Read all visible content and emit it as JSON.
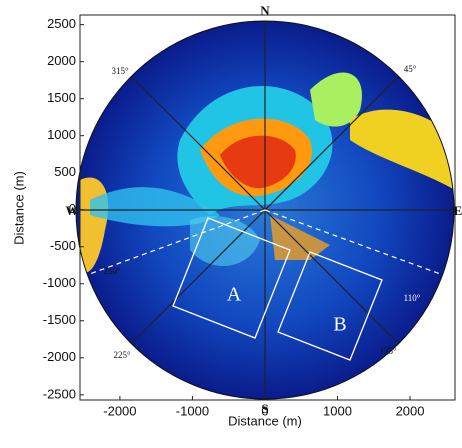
{
  "chart_data": {
    "type": "radar-image",
    "xlabel": "Distance (m)",
    "ylabel": "Distance (m)",
    "xlim": [
      -2550,
      2620
    ],
    "ylim": [
      -2570,
      2630
    ],
    "xticks": [
      -2000,
      -1000,
      0,
      1000,
      2000
    ],
    "yticks": [
      2500,
      2000,
      1500,
      1000,
      500,
      0,
      -500,
      -1000,
      -1500,
      -2000,
      -2500
    ],
    "annotations": [
      "N",
      "S",
      "W",
      "E",
      "315°",
      "45°",
      "250°",
      "110°",
      "225°",
      "135°",
      "A",
      "B"
    ]
  }
}
